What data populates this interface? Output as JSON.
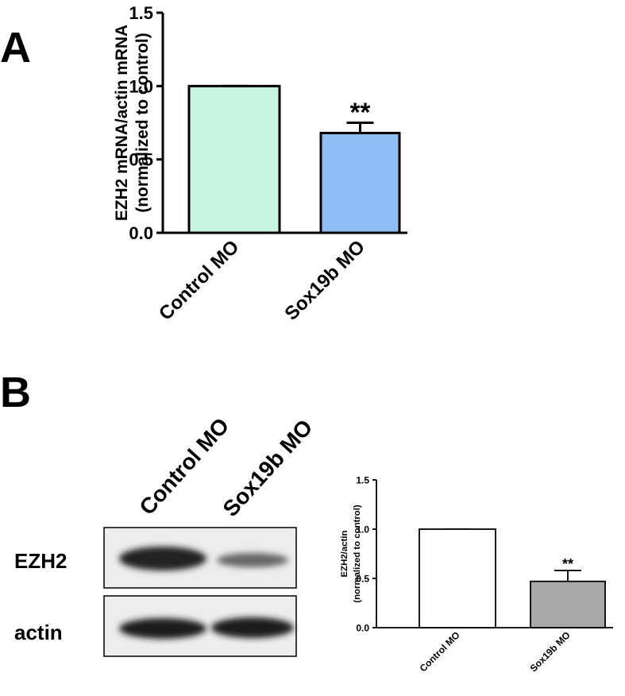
{
  "panel_labels": [
    "A",
    "B"
  ],
  "blot": {
    "lanes": [
      "Control MO",
      "Sox19b MO"
    ],
    "rows": [
      "EZH2",
      "actin"
    ]
  },
  "chart_data": [
    {
      "type": "bar",
      "ylabel": [
        "EZH2 mRNA/actin mRNA",
        "(normalized to control)"
      ],
      "categories": [
        "Control MO",
        "Sox19b MO"
      ],
      "values": [
        1.0,
        0.68
      ],
      "errors": [
        0,
        0.07
      ],
      "colors": [
        "#c8f5e3",
        "#8fbef4"
      ],
      "annotations": [
        {
          "text": "**",
          "x": "Sox19b MO"
        }
      ],
      "ylim": [
        0,
        1.5
      ],
      "yticks": [
        {
          "value": 0,
          "label": "0.0"
        },
        0.5,
        {
          "value": 1,
          "label": "1.0"
        },
        1.5
      ]
    },
    {
      "type": "bar",
      "ylabel": [
        "EZH2/actin",
        "(normalized to control)"
      ],
      "categories": [
        "Control MO",
        "Sox19b MO"
      ],
      "values": [
        1.0,
        0.47
      ],
      "errors": [
        0,
        0.11
      ],
      "colors": [
        "#ffffff",
        "#a9a9a9"
      ],
      "annotations": [
        {
          "text": "**",
          "x": "Sox19b MO"
        }
      ],
      "ylim": [
        0,
        1.5
      ],
      "yticks": [
        {
          "value": 0,
          "label": "0.0"
        },
        0.5,
        {
          "value": 1,
          "label": "1.0"
        },
        1.5
      ]
    }
  ]
}
